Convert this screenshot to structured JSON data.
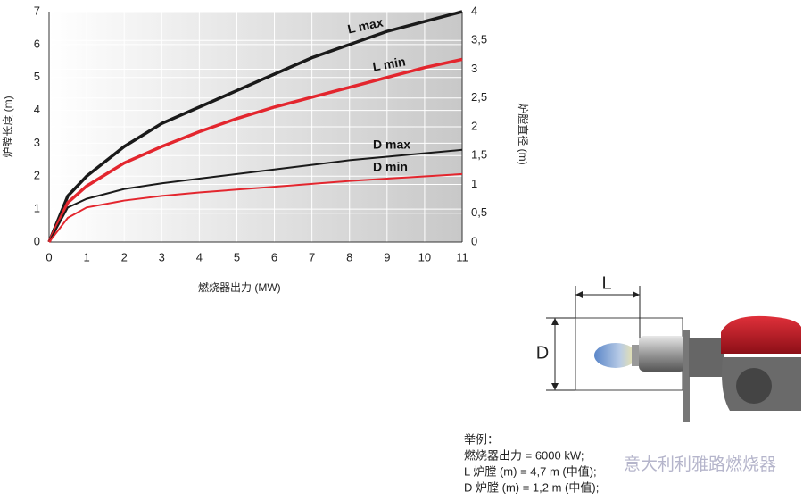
{
  "chart_data": {
    "type": "line",
    "x_label": "燃烧器出力 (MW)",
    "y_label": "炉膛长度 (m)",
    "y2_label": "炉膛直径 (m)",
    "x": [
      0,
      0.5,
      1,
      2,
      3,
      4,
      5,
      6,
      7,
      8,
      9,
      10,
      11
    ],
    "xlim": [
      0,
      11
    ],
    "xticks": [
      0,
      1,
      2,
      3,
      4,
      5,
      6,
      7,
      8,
      9,
      10,
      11
    ],
    "ylim": [
      0,
      7
    ],
    "yticks": [
      0,
      1,
      2,
      3,
      4,
      5,
      6,
      7
    ],
    "y2lim": [
      0,
      4
    ],
    "y2ticks": [
      0,
      {
        "value": 0.5,
        "label": "0,5"
      },
      1,
      {
        "value": 1.5,
        "label": "1,5"
      },
      2,
      {
        "value": 2.5,
        "label": "2,5"
      },
      3,
      {
        "value": 3.5,
        "label": "3,5"
      },
      4
    ],
    "grid": true,
    "series": [
      {
        "name": "L max",
        "color": "#1a1a1a",
        "values": [
          0,
          1.4,
          2.0,
          2.9,
          3.6,
          4.1,
          4.6,
          5.1,
          5.6,
          6.0,
          6.4,
          6.7,
          7.0
        ]
      },
      {
        "name": "L min",
        "color": "#e3262e",
        "values": [
          0,
          1.2,
          1.7,
          2.4,
          2.9,
          3.35,
          3.75,
          4.1,
          4.4,
          4.7,
          5.0,
          5.3,
          5.55
        ]
      },
      {
        "name": "D max",
        "color": "#1a1a1a",
        "axis": "y2",
        "values": [
          0,
          0.6,
          0.75,
          0.92,
          1.02,
          1.1,
          1.18,
          1.26,
          1.34,
          1.42,
          1.48,
          1.54,
          1.6
        ]
      },
      {
        "name": "D min",
        "color": "#e3262e",
        "axis": "y2",
        "values": [
          0,
          0.42,
          0.6,
          0.72,
          0.8,
          0.86,
          0.91,
          0.96,
          1.01,
          1.06,
          1.1,
          1.14,
          1.18
        ]
      }
    ]
  },
  "diagram": {
    "length_label": "L",
    "diameter_label": "D"
  },
  "example": {
    "title": "举例：",
    "lines": [
      "燃烧器出力 = 6000 kW;",
      "L 炉膛 (m) = 4,7 m (中值);",
      "D 炉膛 (m) = 1,2 m (中值);"
    ]
  },
  "watermark": "意大利利雅路燃烧器"
}
